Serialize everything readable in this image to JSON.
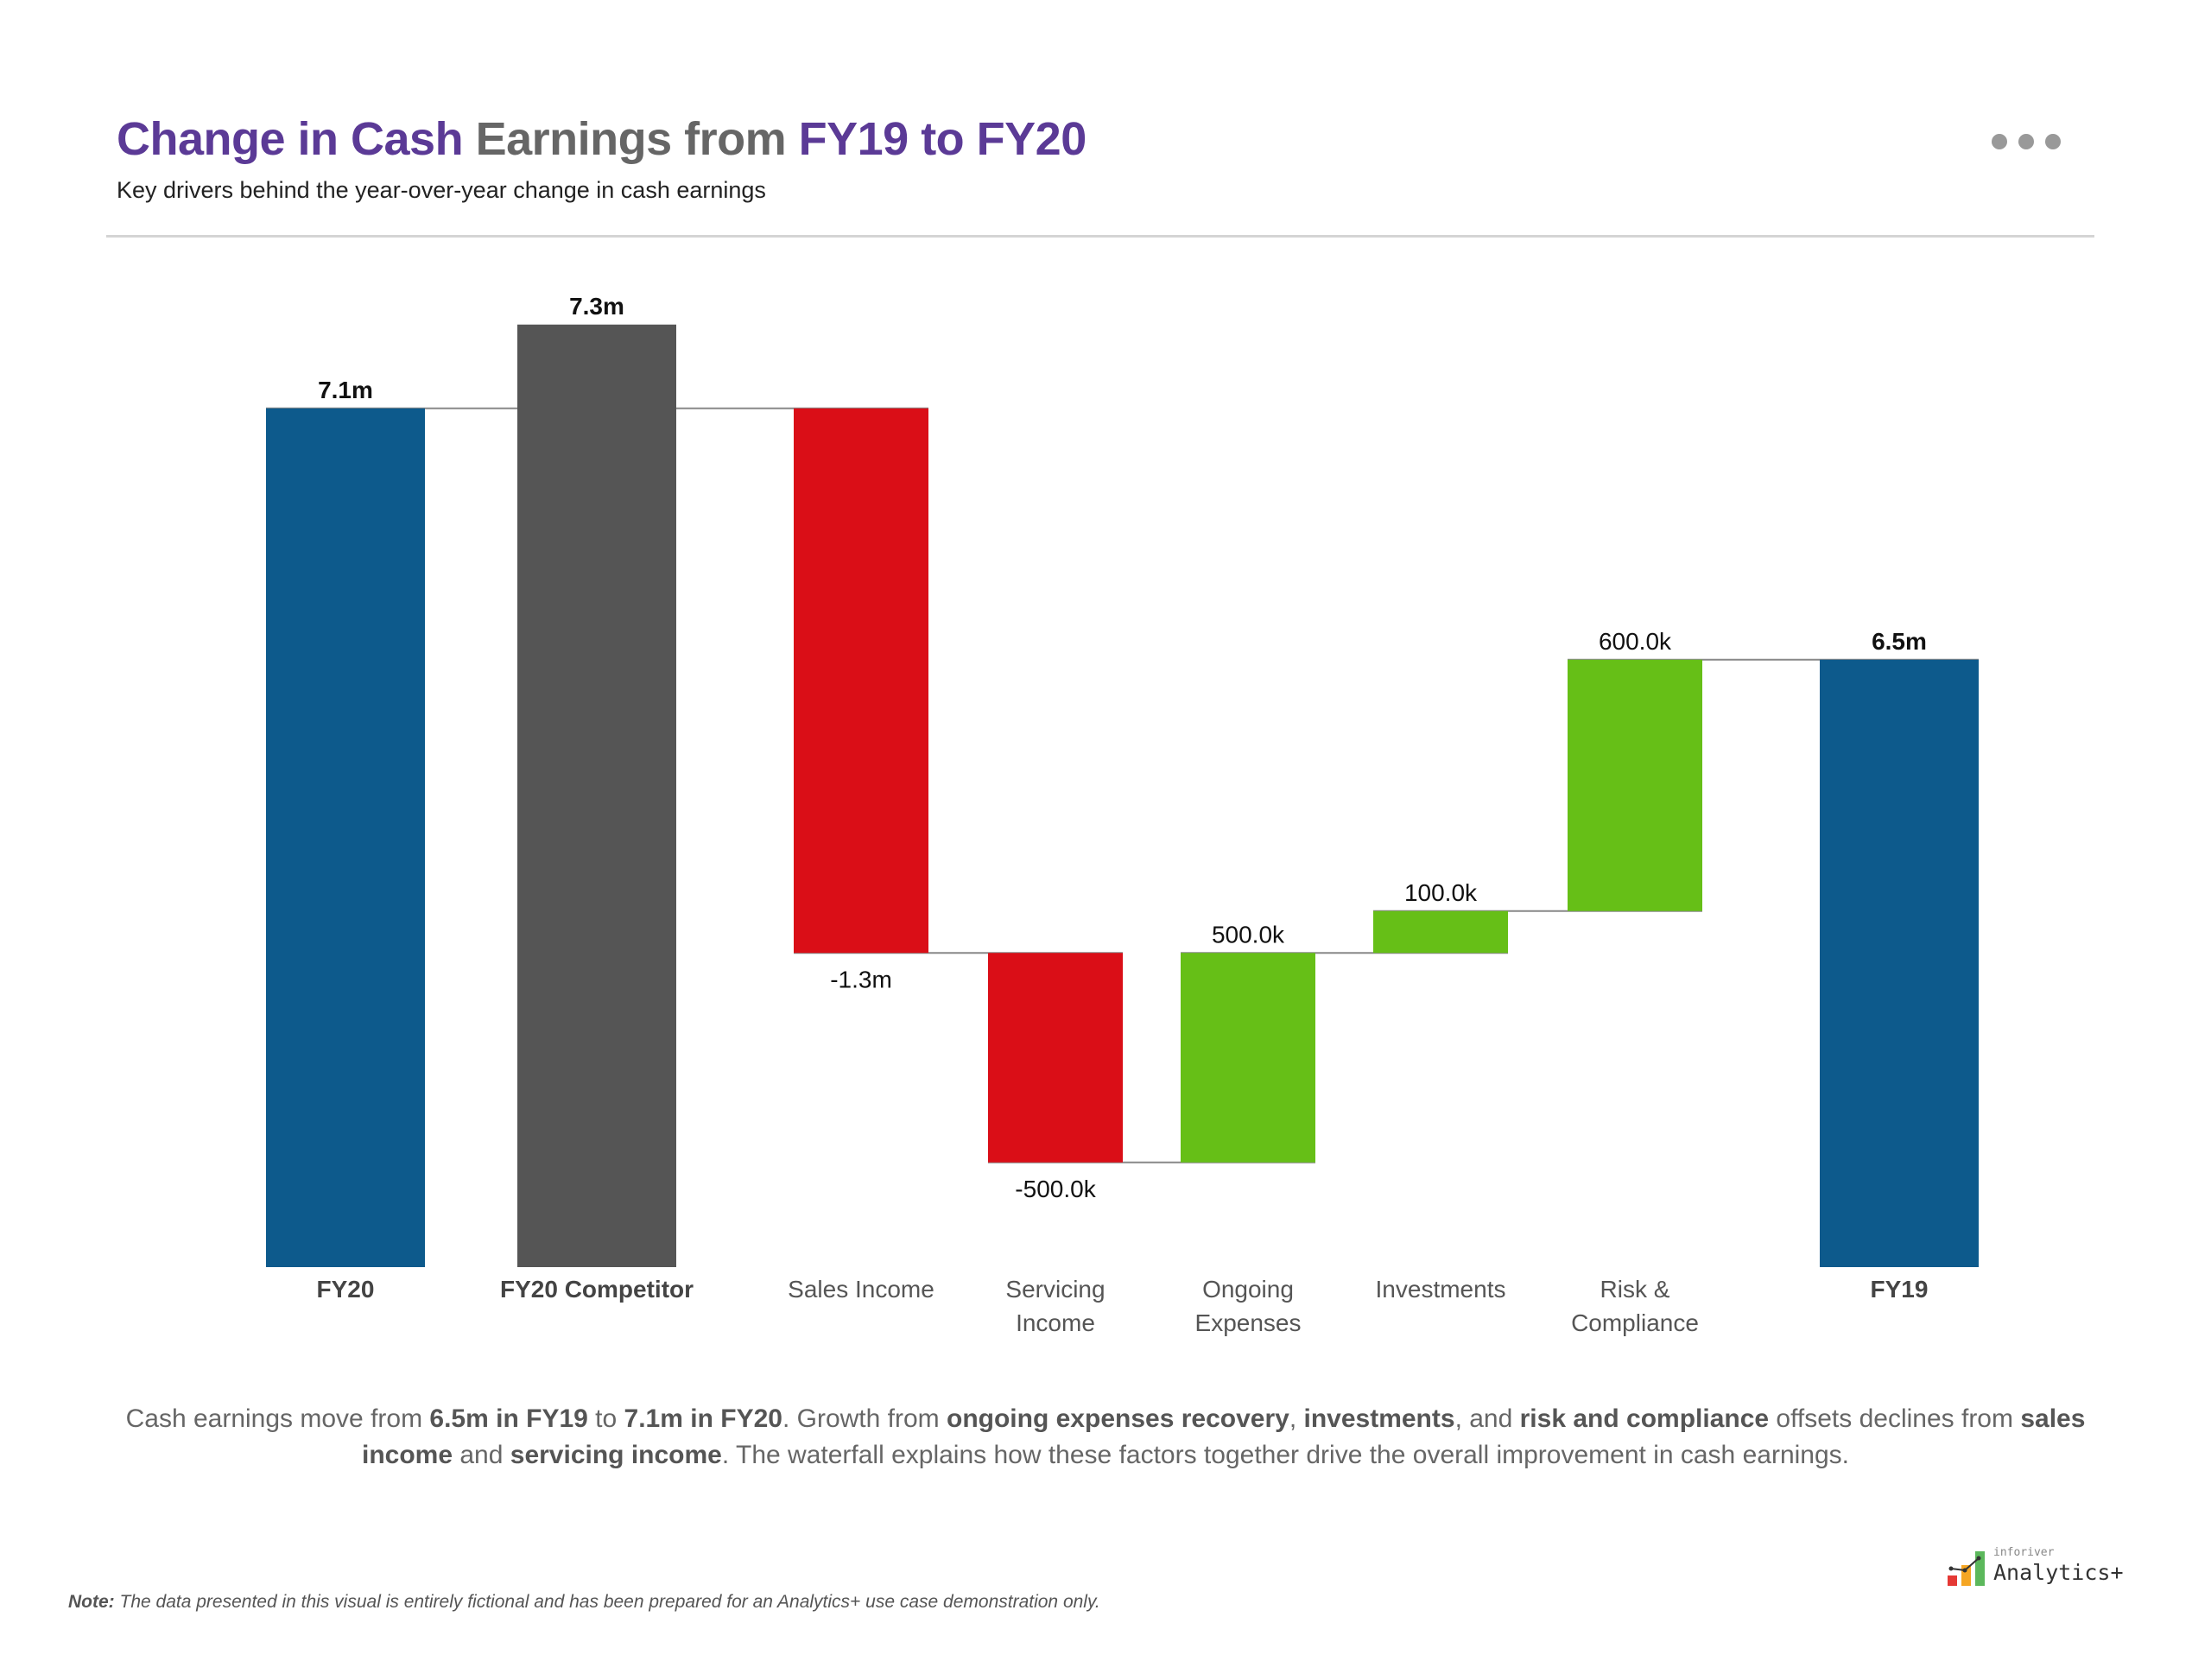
{
  "header": {
    "title_parts": [
      {
        "text": "Change in Cash ",
        "color": "#5B3A96"
      },
      {
        "text": "Earnings from ",
        "color": "#666666"
      },
      {
        "text": "FY19 to FY20",
        "color": "#5B3A96"
      }
    ],
    "subtitle": "Key drivers behind the year-over-year change in cash earnings",
    "more_icon": "more-horizontal-icon"
  },
  "chart_data": {
    "type": "waterfall",
    "categories": [
      [
        "FY20"
      ],
      [
        "FY20 Competitor"
      ],
      [
        "Sales Income"
      ],
      [
        "Servicing",
        "Income"
      ],
      [
        "Ongoing",
        "Expenses"
      ],
      [
        "Investments"
      ],
      [
        "Risk &",
        "Compliance"
      ],
      [
        "FY19"
      ]
    ],
    "values_m": [
      7.1,
      7.3,
      -1.3,
      -0.5,
      0.5,
      0.1,
      0.6,
      6.5
    ],
    "kinds": [
      "total",
      "total",
      "delta",
      "delta",
      "delta",
      "delta",
      "delta",
      "total"
    ],
    "data_labels": [
      "7.1m",
      "7.3m",
      "-1.3m",
      "-500.0k",
      "500.0k",
      "100.0k",
      "600.0k",
      "6.5m"
    ],
    "bold_categories": [
      true,
      true,
      false,
      false,
      false,
      false,
      false,
      true
    ],
    "colors": {
      "total": "#0D5A8C",
      "competitor": "#555555",
      "negative": "#DA0E17",
      "positive": "#66BF17",
      "connector": "#888888"
    },
    "ylim": [
      5.05,
      7.45
    ],
    "grid": false,
    "legend": "none"
  },
  "narrative": [
    {
      "text": "Cash earnings move from ",
      "bold": false
    },
    {
      "text": "6.5m in FY19",
      "bold": true
    },
    {
      "text": " to ",
      "bold": false
    },
    {
      "text": "7.1m in FY20",
      "bold": true
    },
    {
      "text": ". Growth from ",
      "bold": false
    },
    {
      "text": "ongoing expenses recovery",
      "bold": true
    },
    {
      "text": ", ",
      "bold": false
    },
    {
      "text": "investments",
      "bold": true
    },
    {
      "text": ", and ",
      "bold": false
    },
    {
      "text": "risk and compliance",
      "bold": true
    },
    {
      "text": " offsets declines from ",
      "bold": false
    },
    {
      "text": "sales income",
      "bold": true
    },
    {
      "text": " and ",
      "bold": false
    },
    {
      "text": "servicing income",
      "bold": true
    },
    {
      "text": ". The waterfall explains how these factors together drive the overall improvement in cash earnings.",
      "bold": false
    }
  ],
  "footer": {
    "note_label": "Note:",
    "note_text": " The data presented in this visual is entirely fictional and has been prepared for an Analytics+ use case demonstration only.",
    "logo_small": "inforiver",
    "logo_big": "Analytics+"
  }
}
